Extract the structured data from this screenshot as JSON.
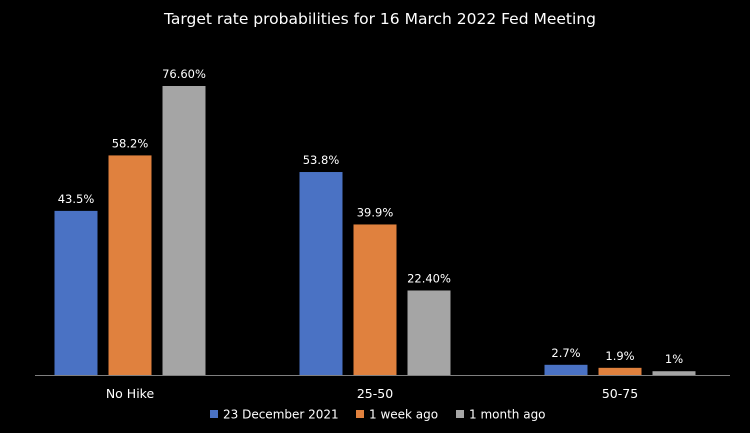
{
  "chart_data": {
    "type": "bar",
    "title": "Target rate probabilities for 16 March 2022 Fed Meeting",
    "categories": [
      "No Hike",
      "25-50",
      "50-75"
    ],
    "ylim": [
      0,
      80
    ],
    "grid": false,
    "legend_position": "bottom",
    "series": [
      {
        "name": "23 December 2021",
        "color": "#4a72c4",
        "values": [
          43.5,
          53.8,
          2.7
        ],
        "labels": [
          "43.5%",
          "53.8%",
          "2.7%"
        ]
      },
      {
        "name": "1 week ago",
        "color": "#e0813e",
        "values": [
          58.2,
          39.9,
          1.9
        ],
        "labels": [
          "58.2%",
          "39.9%",
          "1.9%"
        ]
      },
      {
        "name": "1 month ago",
        "color": "#a5a5a5",
        "values": [
          76.6,
          22.4,
          1.0
        ],
        "labels": [
          "76.60%",
          "22.40%",
          "1%"
        ]
      }
    ]
  }
}
